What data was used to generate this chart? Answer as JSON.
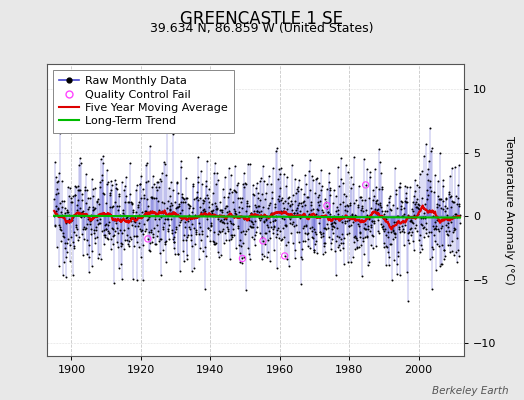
{
  "title": "GREENCASTLE 1 SE",
  "subtitle": "39.634 N, 86.859 W (United States)",
  "ylabel": "Temperature Anomaly (°C)",
  "watermark": "Berkeley Earth",
  "xlim": [
    1893,
    2013
  ],
  "ylim": [
    -11,
    12
  ],
  "yticks": [
    -10,
    -5,
    0,
    5,
    10
  ],
  "xticks": [
    1900,
    1920,
    1940,
    1960,
    1980,
    2000
  ],
  "start_year": 1895,
  "end_year": 2011,
  "background_color": "#e8e8e8",
  "plot_bg_color": "#ffffff",
  "raw_line_color": "#4444cc",
  "raw_dot_color": "#000000",
  "qc_fail_color": "#ff44ff",
  "moving_avg_color": "#dd0000",
  "trend_color": "#00bb00",
  "legend_fontsize": 8,
  "title_fontsize": 12,
  "subtitle_fontsize": 9,
  "seed": 12345
}
